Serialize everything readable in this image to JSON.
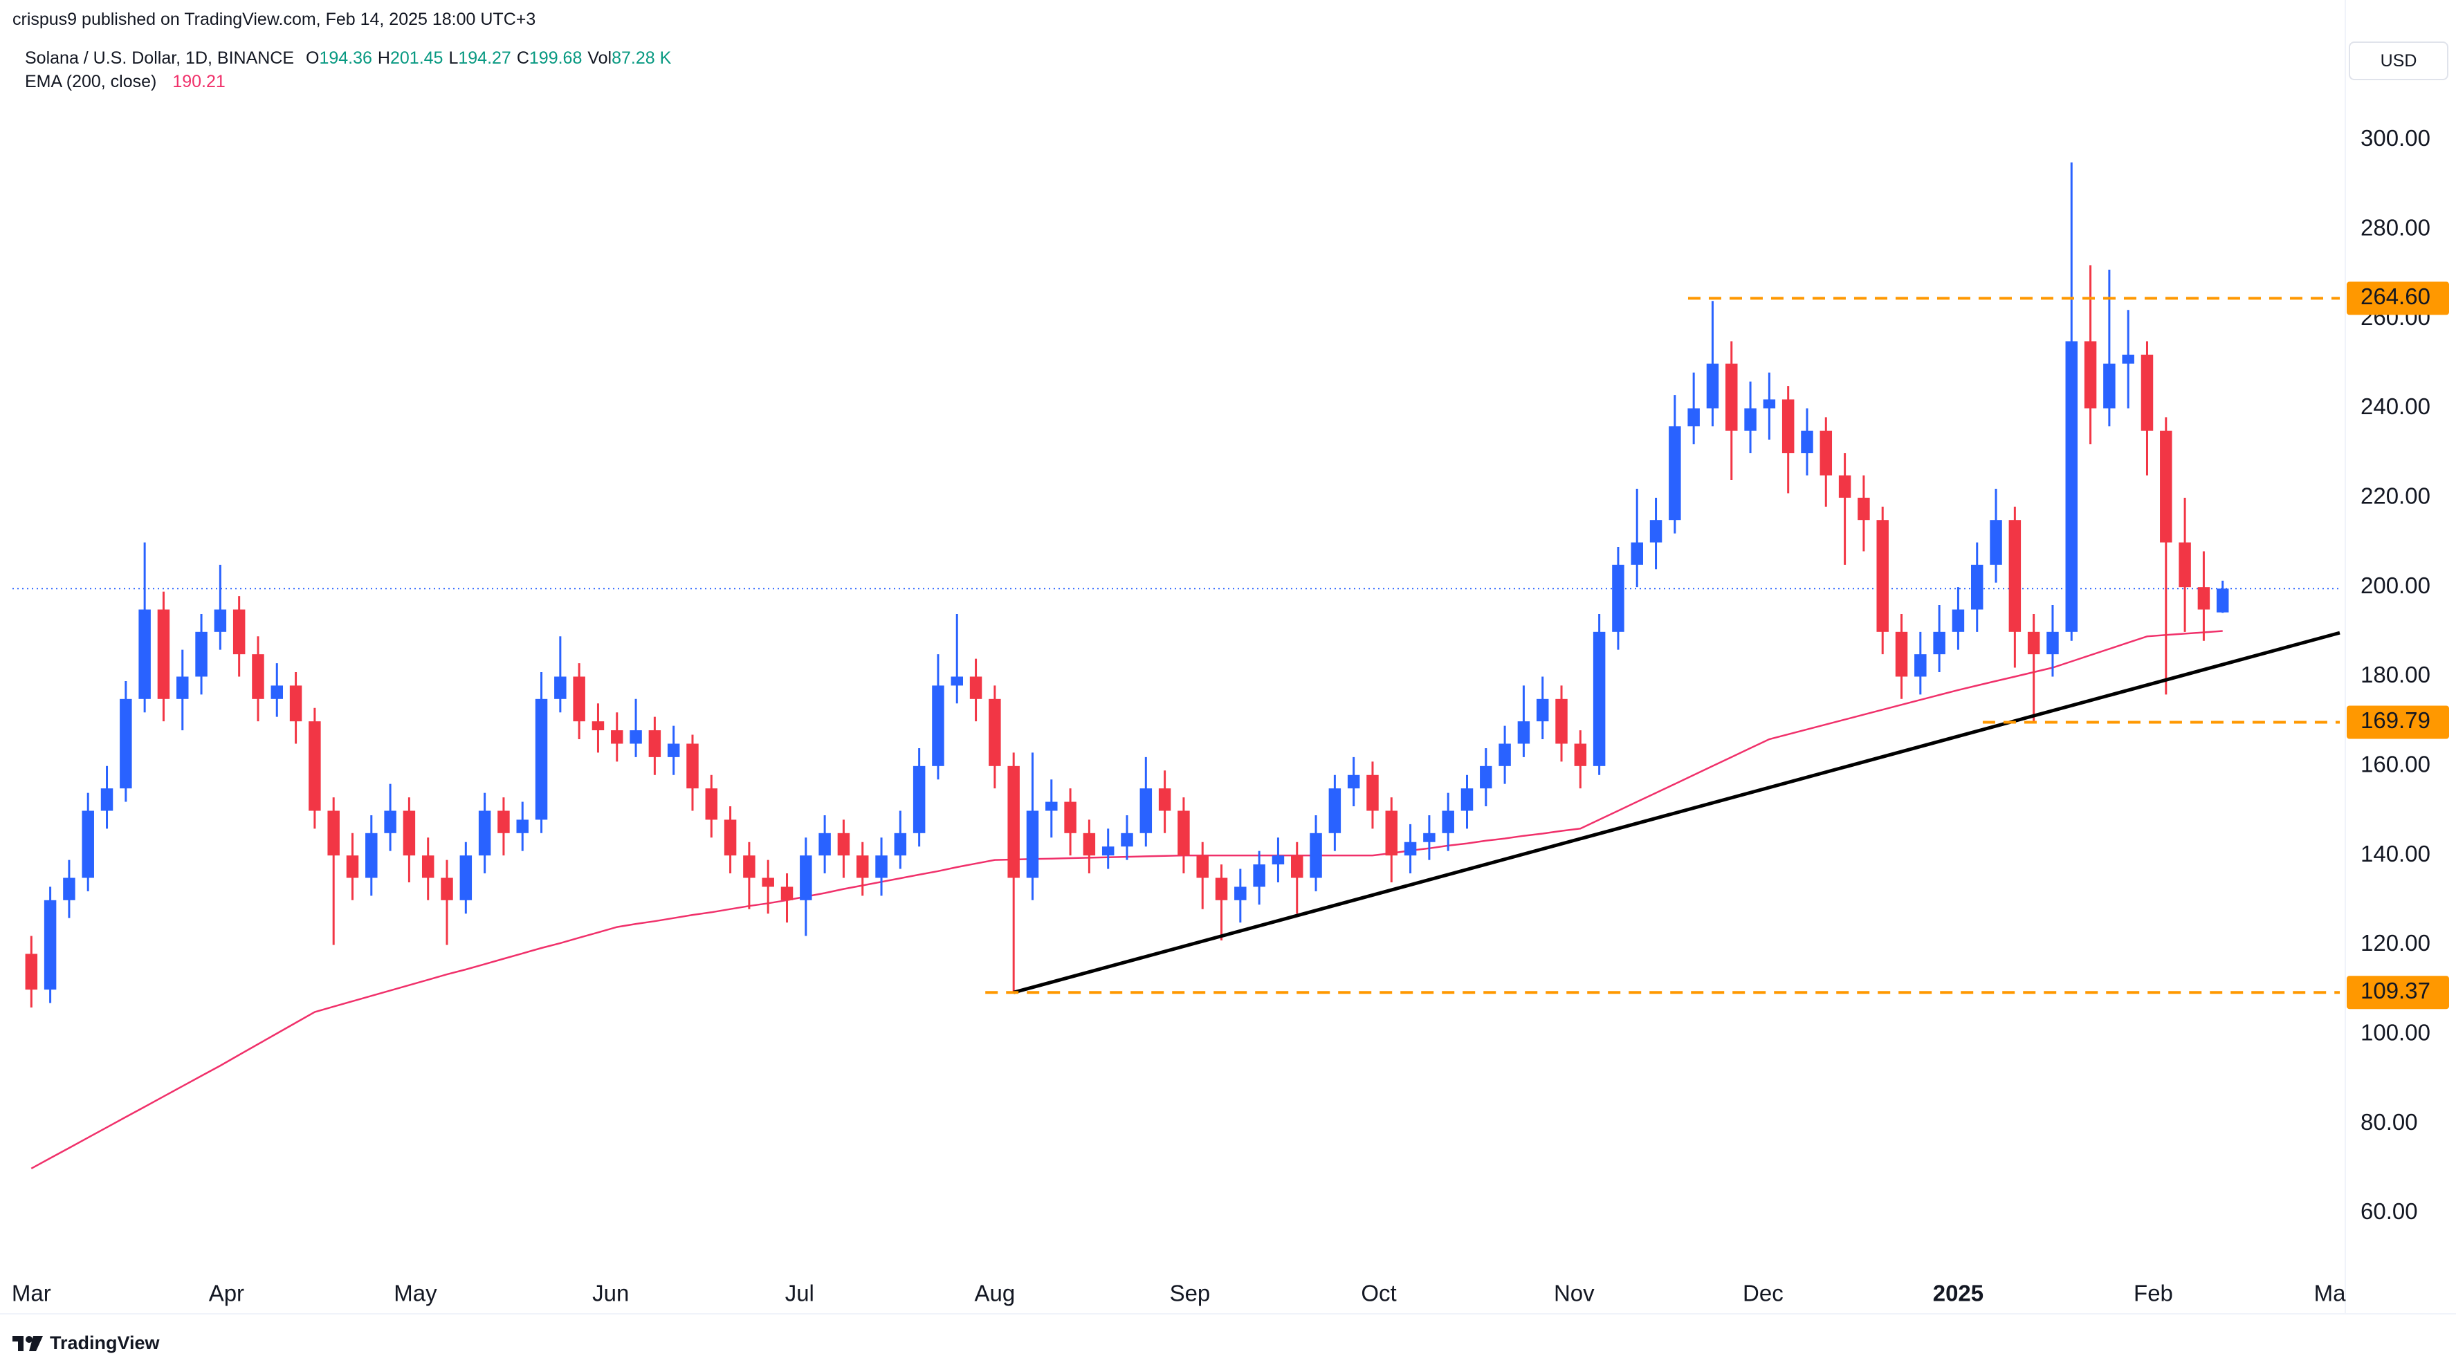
{
  "header": {
    "publisher": "crispus9 published on TradingView.com, Feb 14, 2025 18:00 UTC+3",
    "symbol": "Solana / U.S. Dollar, 1D, BINANCE",
    "ohlcv": [
      {
        "label": "O",
        "value": "194.36"
      },
      {
        "label": "H",
        "value": "201.45"
      },
      {
        "label": "L",
        "value": "194.27"
      },
      {
        "label": "C",
        "value": "199.68"
      },
      {
        "label": "Vol",
        "value": "87.28 K"
      }
    ],
    "ema_value": "190.21",
    "currency": "USD"
  },
  "footer": {
    "brand": "TradingView"
  },
  "chart_data": {
    "type": "candlestick",
    "up_color": "#2962ff",
    "down_color": "#f23645",
    "open": [
      118,
      110,
      130,
      135,
      150,
      155,
      175,
      195,
      175,
      180,
      190,
      195,
      185,
      175,
      178,
      170,
      150,
      140,
      135,
      145,
      150,
      140,
      135,
      130,
      140,
      150,
      145,
      148,
      175,
      180,
      170,
      168,
      165,
      168,
      162,
      165,
      155,
      148,
      140,
      135,
      133,
      130,
      140,
      145,
      140,
      135,
      140,
      145,
      160,
      178,
      180,
      175,
      160,
      135,
      150,
      152,
      145,
      140,
      142,
      145,
      155,
      150,
      140,
      135,
      130,
      133,
      138,
      140,
      135,
      145,
      155,
      158,
      150,
      140,
      143,
      145,
      150,
      155,
      160,
      165,
      170,
      175,
      165,
      160,
      190,
      205,
      210,
      215,
      236,
      240,
      250,
      235,
      240,
      242,
      230,
      235,
      225,
      220,
      215,
      190,
      180,
      185,
      190,
      195,
      205,
      215,
      190,
      185,
      190,
      255,
      240,
      250,
      252,
      235,
      210,
      200,
      194.36
    ],
    "high": [
      122,
      133,
      139,
      154,
      160,
      179,
      210,
      199,
      186,
      194,
      205,
      198,
      189,
      183,
      181,
      173,
      153,
      145,
      149,
      156,
      153,
      144,
      139,
      143,
      154,
      153,
      152,
      181,
      189,
      183,
      174,
      172,
      175,
      171,
      169,
      167,
      158,
      151,
      143,
      139,
      136,
      144,
      149,
      148,
      143,
      144,
      150,
      164,
      185,
      194,
      184,
      178,
      163,
      163,
      157,
      155,
      148,
      146,
      149,
      162,
      159,
      153,
      143,
      138,
      137,
      141,
      144,
      143,
      149,
      158,
      162,
      161,
      153,
      147,
      149,
      154,
      158,
      164,
      169,
      178,
      180,
      178,
      168,
      194,
      209,
      222,
      220,
      243,
      248,
      264,
      255,
      246,
      248,
      245,
      240,
      238,
      230,
      225,
      218,
      194,
      190,
      196,
      200,
      210,
      222,
      218,
      194,
      196,
      295,
      272,
      271,
      262,
      255,
      238,
      220,
      208,
      201.45
    ],
    "low": [
      106,
      107,
      126,
      132,
      146,
      152,
      172,
      170,
      168,
      176,
      186,
      180,
      170,
      171,
      165,
      146,
      120,
      130,
      131,
      141,
      134,
      130,
      120,
      127,
      136,
      140,
      141,
      145,
      172,
      166,
      163,
      161,
      162,
      158,
      158,
      150,
      144,
      136,
      128,
      127,
      125,
      122,
      136,
      135,
      131,
      131,
      137,
      142,
      157,
      174,
      170,
      155,
      109.37,
      130,
      144,
      140,
      136,
      137,
      139,
      142,
      145,
      136,
      128,
      121,
      125,
      129,
      134,
      127,
      132,
      141,
      151,
      146,
      134,
      136,
      139,
      141,
      146,
      151,
      156,
      162,
      166,
      161,
      155,
      158,
      186,
      200,
      204,
      212,
      232,
      236,
      224,
      230,
      233,
      221,
      225,
      218,
      205,
      208,
      185,
      175,
      176,
      181,
      186,
      190,
      201,
      182,
      170,
      180,
      188,
      232,
      236,
      240,
      225,
      176,
      190,
      188,
      194.27
    ],
    "close": [
      110,
      130,
      135,
      150,
      155,
      175,
      195,
      175,
      180,
      190,
      195,
      185,
      175,
      178,
      170,
      150,
      140,
      135,
      145,
      150,
      140,
      135,
      130,
      140,
      150,
      145,
      148,
      175,
      180,
      170,
      168,
      165,
      168,
      162,
      165,
      155,
      148,
      140,
      135,
      133,
      130,
      140,
      145,
      140,
      135,
      140,
      145,
      160,
      178,
      180,
      175,
      160,
      135,
      150,
      152,
      145,
      140,
      142,
      145,
      155,
      150,
      140,
      135,
      130,
      133,
      138,
      140,
      135,
      145,
      155,
      158,
      150,
      140,
      143,
      145,
      150,
      155,
      160,
      165,
      170,
      175,
      165,
      160,
      190,
      205,
      210,
      215,
      236,
      240,
      250,
      235,
      240,
      242,
      230,
      235,
      225,
      220,
      215,
      190,
      180,
      185,
      190,
      195,
      205,
      215,
      190,
      185,
      190,
      255,
      240,
      250,
      252,
      235,
      210,
      200,
      195,
      199.68
    ],
    "series": [
      {
        "name": "EMA (200, close)",
        "color": "#f0306a",
        "values": [
          70,
          72.3,
          74.6,
          76.9,
          79.2,
          81.5,
          83.8,
          86.1,
          88.4,
          90.7,
          93,
          95.4,
          97.8,
          100.2,
          102.6,
          105,
          106.2,
          107.4,
          108.6,
          109.8,
          111,
          112.2,
          113.4,
          114.5,
          115.7,
          116.9,
          118.1,
          119.3,
          120.4,
          121.6,
          122.8,
          124,
          124.7,
          125.3,
          126,
          126.7,
          127.3,
          128,
          128.7,
          129.3,
          130,
          130.8,
          131.6,
          132.5,
          133.3,
          134.1,
          134.9,
          135.7,
          136.5,
          137.4,
          138.2,
          139,
          139.1,
          139.2,
          139.3,
          139.4,
          139.5,
          139.6,
          139.7,
          139.8,
          139.9,
          140,
          140,
          140,
          140,
          140,
          140,
          140,
          140,
          140,
          140,
          140,
          140.5,
          141.1,
          141.6,
          142.2,
          142.7,
          143.3,
          143.8,
          144.4,
          144.9,
          145.5,
          146,
          148,
          150,
          152,
          154,
          156,
          158,
          160,
          162,
          164,
          166,
          167.1,
          168.2,
          169.3,
          170.4,
          171.5,
          172.6,
          173.7,
          174.8,
          175.9,
          177,
          178,
          179,
          180,
          181,
          182,
          183.4,
          184.8,
          186.2,
          187.6,
          189,
          189.3,
          189.6,
          189.9,
          190.21
        ]
      }
    ],
    "price_line": {
      "value": 199.68,
      "color": "#2962ff"
    },
    "levels": [
      {
        "value": 264.6,
        "label": "264.60",
        "from": 87.7
      },
      {
        "value": 169.79,
        "label": "169.79",
        "from": 103.3
      },
      {
        "value": 109.37,
        "label": "109.37",
        "from": 50.5
      }
    ],
    "level_color": "#ff9800",
    "trendline": {
      "x": [
        52,
        122.2
      ],
      "y": [
        109.37,
        189.8
      ],
      "color": "#000000"
    },
    "xlim": [
      -1,
      122.2
    ],
    "xticks": [
      {
        "value": 0,
        "label": "Mar"
      },
      {
        "value": 10.33,
        "label": "Apr"
      },
      {
        "value": 20.33,
        "label": "May"
      },
      {
        "value": 30.67,
        "label": "Jun"
      },
      {
        "value": 40.67,
        "label": "Jul"
      },
      {
        "value": 51,
        "label": "Aug"
      },
      {
        "value": 61.33,
        "label": "Sep"
      },
      {
        "value": 71.33,
        "label": "Oct"
      },
      {
        "value": 81.67,
        "label": "Nov"
      },
      {
        "value": 91.67,
        "label": "Dec"
      },
      {
        "value": 102,
        "label": "2025"
      },
      {
        "value": 112.33,
        "label": "Feb"
      },
      {
        "value": 121.67,
        "label": "Ma"
      }
    ],
    "ylim": [
      47.7,
      322.5
    ],
    "yticks": [
      {
        "value": 60,
        "label": "60.00"
      },
      {
        "value": 80,
        "label": "80.00"
      },
      {
        "value": 100,
        "label": "100.00"
      },
      {
        "value": 120,
        "label": "120.00"
      },
      {
        "value": 140,
        "label": "140.00"
      },
      {
        "value": 160,
        "label": "160.00"
      },
      {
        "value": 180,
        "label": "180.00"
      },
      {
        "value": 200,
        "label": "200.00"
      },
      {
        "value": 220,
        "label": "220.00"
      },
      {
        "value": 240,
        "label": "240.00"
      },
      {
        "value": 260,
        "label": "260.00"
      },
      {
        "value": 280,
        "label": "280.00"
      },
      {
        "value": 300,
        "label": "300.00"
      }
    ],
    "grid": false
  }
}
